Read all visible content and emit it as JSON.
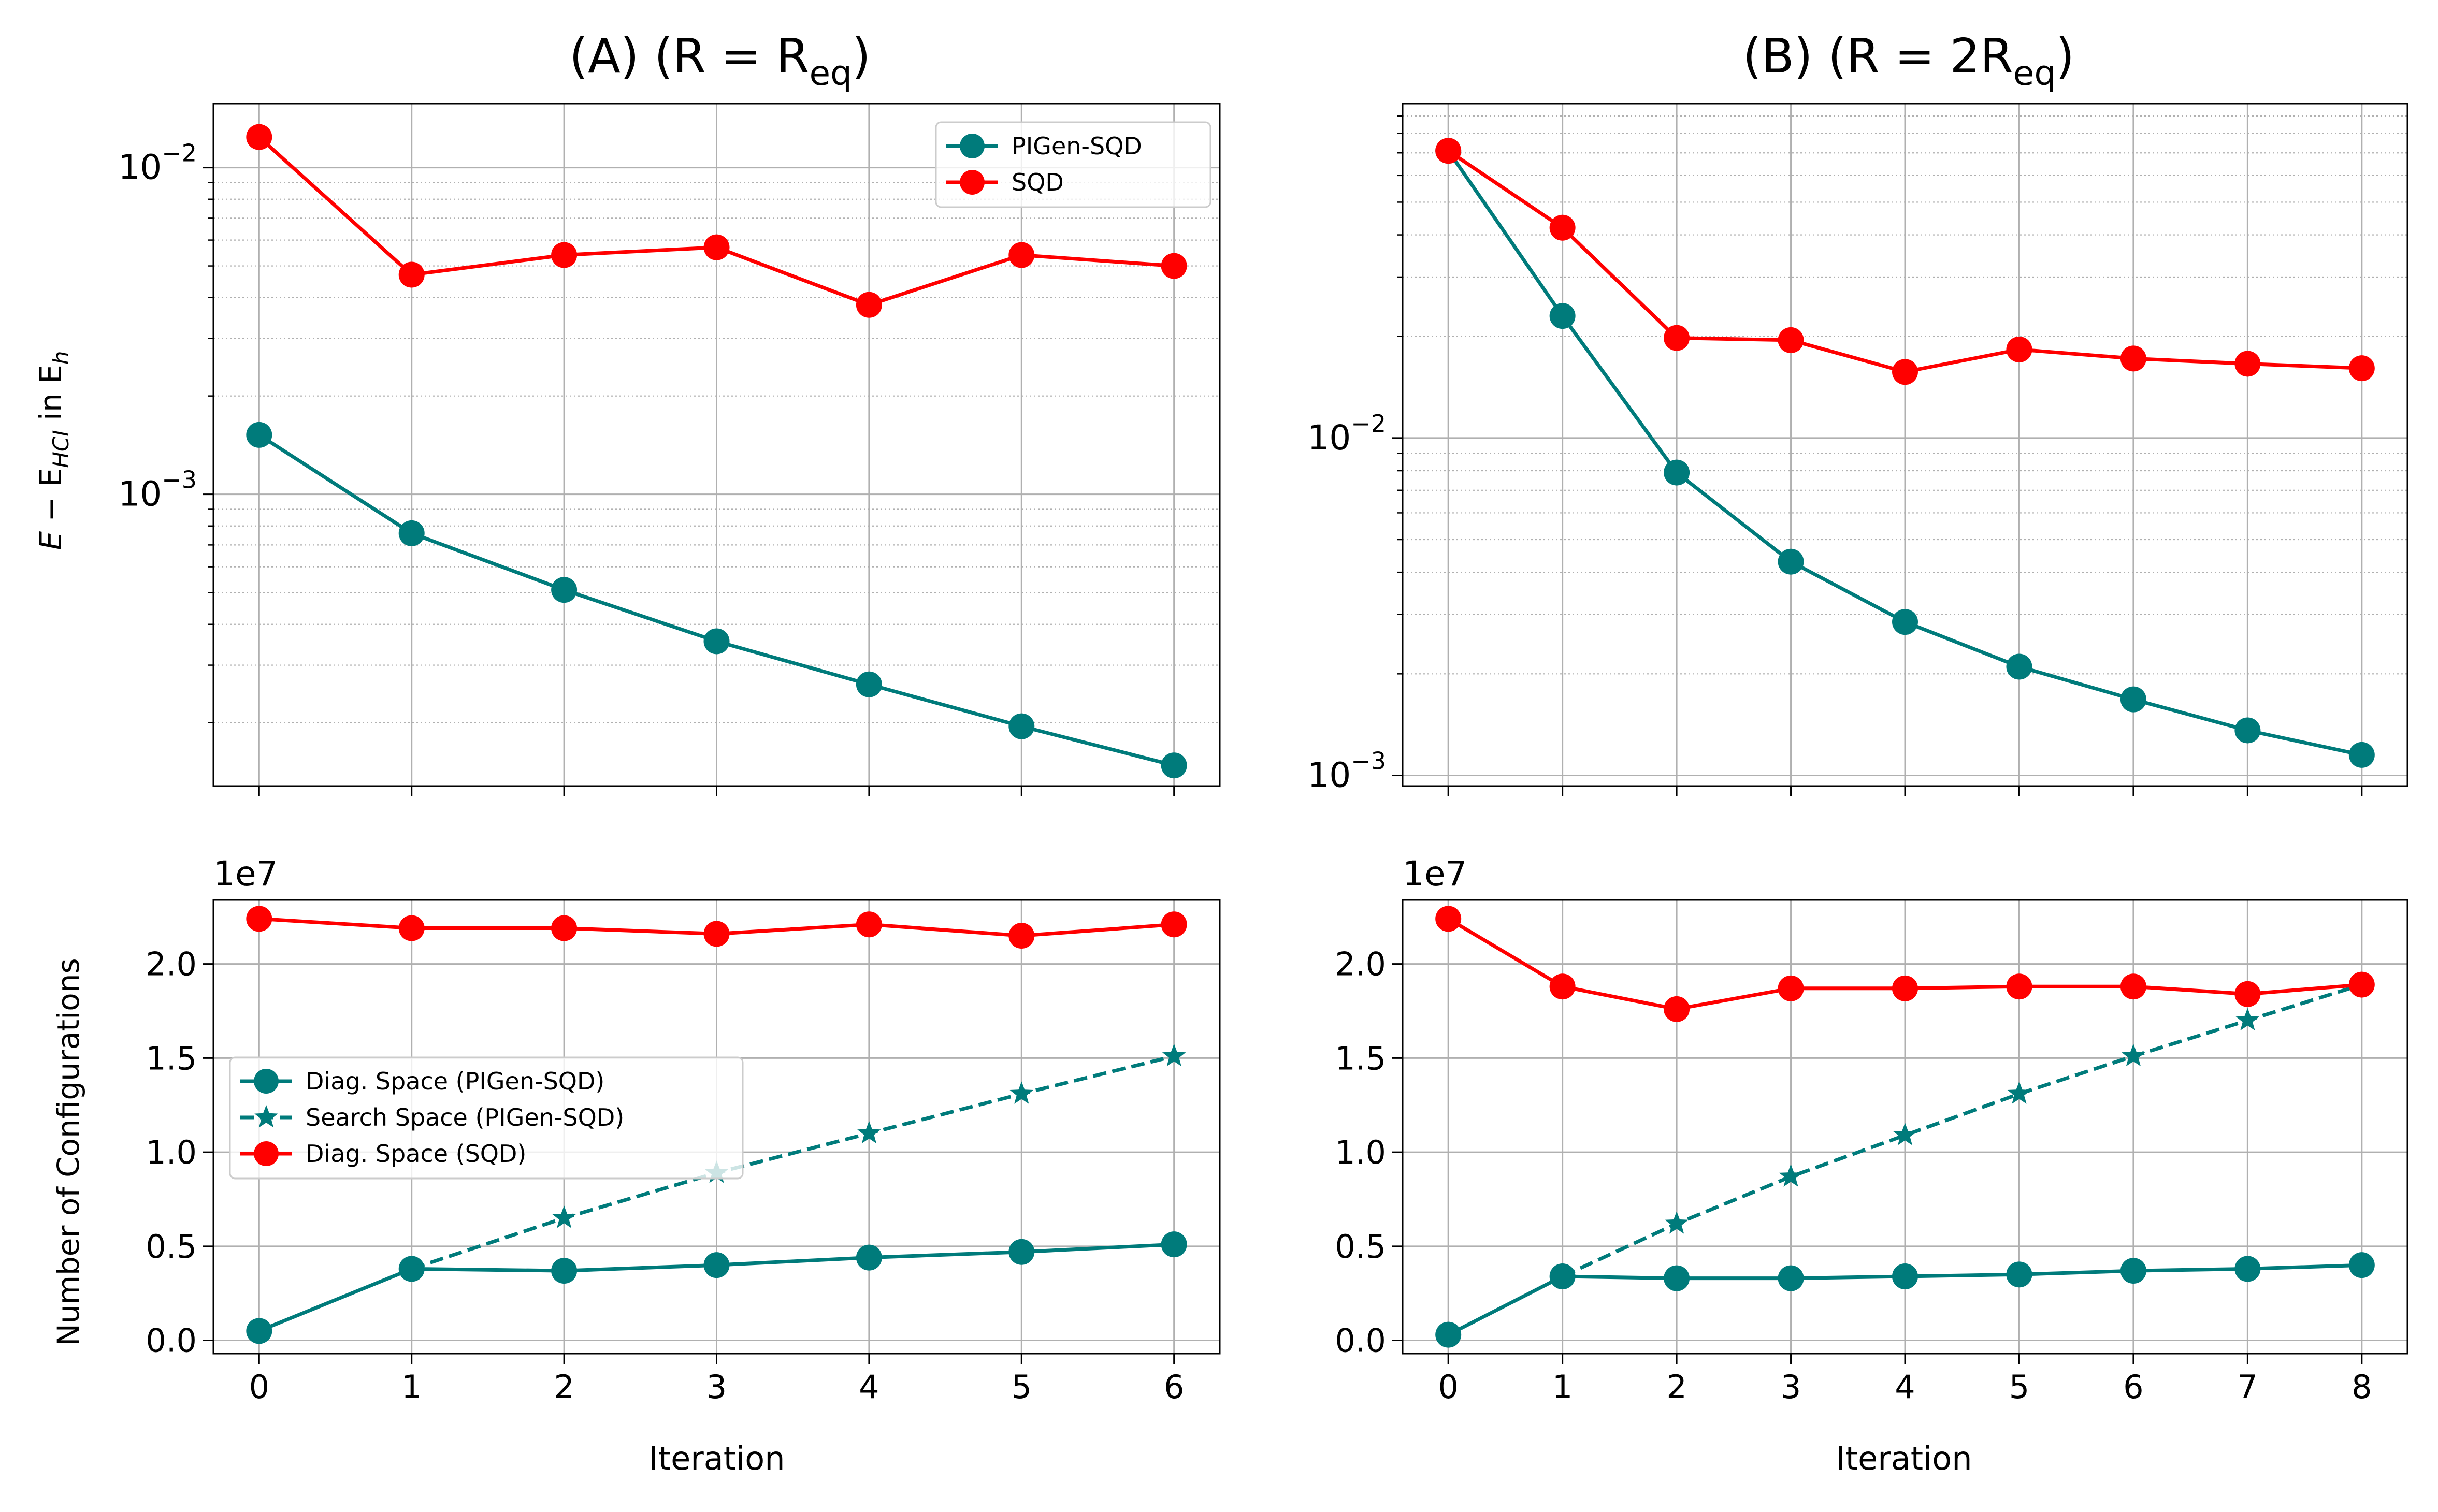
{
  "colors": {
    "pigen": "#007b7b",
    "sqd": "#ff0000",
    "grid_major": "#b0b0b0",
    "grid_minor": "#b0b0b0"
  },
  "panels": {
    "A": {
      "title_main": "(A) (R = R",
      "title_sub": "eq",
      "title_close": ")"
    },
    "B": {
      "title_main": "(B) (R = 2R",
      "title_sub": "eq",
      "title_close": ")"
    }
  },
  "labels": {
    "top_ylabel_parts": {
      "E": "E",
      "minus": " − E",
      "hci": "HCI",
      "in": " in E",
      "h": "h"
    },
    "bottom_ylabel": "Number of Configurations",
    "xlabel": "Iteration",
    "offset_text": "1e7"
  },
  "chart_data": [
    {
      "id": "A-top",
      "type": "line",
      "title": "(A) (R = Req)",
      "xlabel": "",
      "ylabel": "E − E_HCI in E_h",
      "yscale": "log",
      "ylim": [
        0.000128,
        0.0157
      ],
      "xlim": [
        -0.3,
        6.3
      ],
      "x": [
        0,
        1,
        2,
        3,
        4,
        5,
        6
      ],
      "yticks": [
        0.001,
        0.01
      ],
      "ytick_labels": [
        [
          "10",
          "−3"
        ],
        [
          "10",
          "−2"
        ]
      ],
      "legend": {
        "loc": "upper right",
        "entries": [
          "PIGen-SQD",
          "SQD"
        ]
      },
      "series": [
        {
          "name": "PIGen-SQD",
          "color": "#007b7b",
          "marker": "o",
          "linestyle": "solid",
          "values": [
            0.00152,
            0.00076,
            0.00051,
            0.000355,
            0.000262,
            0.000195,
            0.000148
          ]
        },
        {
          "name": "SQD",
          "color": "#ff0000",
          "marker": "o",
          "linestyle": "solid",
          "values": [
            0.0124,
            0.0047,
            0.0054,
            0.0057,
            0.0038,
            0.0054,
            0.005
          ]
        }
      ]
    },
    {
      "id": "B-top",
      "type": "line",
      "title": "(B) (R = 2Req)",
      "xlabel": "",
      "ylabel": "",
      "yscale": "log",
      "ylim": [
        0.00093,
        0.098
      ],
      "xlim": [
        -0.4,
        8.4
      ],
      "x": [
        0,
        1,
        2,
        3,
        4,
        5,
        6,
        7,
        8
      ],
      "yticks": [
        0.001,
        0.01
      ],
      "ytick_labels": [
        [
          "10",
          "−3"
        ],
        [
          "10",
          "−2"
        ]
      ],
      "series": [
        {
          "name": "PIGen-SQD",
          "color": "#007b7b",
          "marker": "o",
          "linestyle": "solid",
          "values": [
            0.071,
            0.023,
            0.0079,
            0.0043,
            0.00285,
            0.0021,
            0.00168,
            0.00136,
            0.00115
          ]
        },
        {
          "name": "SQD",
          "color": "#ff0000",
          "marker": "o",
          "linestyle": "solid",
          "values": [
            0.071,
            0.042,
            0.0198,
            0.0195,
            0.0157,
            0.0183,
            0.0172,
            0.0166,
            0.0161
          ]
        }
      ]
    },
    {
      "id": "A-bottom",
      "type": "line",
      "title": "",
      "xlabel": "Iteration",
      "ylabel": "Number of Configurations",
      "offset": "1e7",
      "ylim": [
        -0.07,
        2.34
      ],
      "xlim": [
        -0.3,
        6.3
      ],
      "x": [
        0,
        1,
        2,
        3,
        4,
        5,
        6
      ],
      "xticks": [
        "0",
        "1",
        "2",
        "3",
        "4",
        "5",
        "6"
      ],
      "yticks": [
        0.0,
        0.5,
        1.0,
        1.5,
        2.0
      ],
      "ytick_labels": [
        "0.0",
        "0.5",
        "1.0",
        "1.5",
        "2.0"
      ],
      "legend": {
        "loc": "center left",
        "entries": [
          "Diag. Space (PIGen-SQD)",
          "Search Space (PIGen-SQD)",
          "Diag. Space (SQD)"
        ]
      },
      "series": [
        {
          "name": "Diag. Space (PIGen-SQD)",
          "color": "#007b7b",
          "marker": "o",
          "linestyle": "solid",
          "values": [
            0.05,
            0.38,
            0.37,
            0.4,
            0.44,
            0.47,
            0.51
          ]
        },
        {
          "name": "Search Space (PIGen-SQD)",
          "color": "#007b7b",
          "marker": "*",
          "linestyle": "dashed",
          "values": [
            null,
            0.38,
            0.65,
            0.89,
            1.1,
            1.31,
            1.51
          ]
        },
        {
          "name": "Diag. Space (SQD)",
          "color": "#ff0000",
          "marker": "o",
          "linestyle": "solid",
          "values": [
            2.24,
            2.19,
            2.19,
            2.16,
            2.21,
            2.15,
            2.21
          ]
        }
      ]
    },
    {
      "id": "B-bottom",
      "type": "line",
      "title": "",
      "xlabel": "Iteration",
      "ylabel": "",
      "offset": "1e7",
      "ylim": [
        -0.07,
        2.34
      ],
      "xlim": [
        -0.4,
        8.4
      ],
      "x": [
        0,
        1,
        2,
        3,
        4,
        5,
        6,
        7,
        8
      ],
      "xticks": [
        "0",
        "1",
        "2",
        "3",
        "4",
        "5",
        "6",
        "7",
        "8"
      ],
      "yticks": [
        0.0,
        0.5,
        1.0,
        1.5,
        2.0
      ],
      "ytick_labels": [
        "0.0",
        "0.5",
        "1.0",
        "1.5",
        "2.0"
      ],
      "series": [
        {
          "name": "Diag. Space (PIGen-SQD)",
          "color": "#007b7b",
          "marker": "o",
          "linestyle": "solid",
          "values": [
            0.03,
            0.34,
            0.33,
            0.33,
            0.34,
            0.35,
            0.37,
            0.38,
            0.4
          ]
        },
        {
          "name": "Search Space (PIGen-SQD)",
          "color": "#007b7b",
          "marker": "*",
          "linestyle": "dashed",
          "values": [
            null,
            0.34,
            0.62,
            0.87,
            1.09,
            1.31,
            1.51,
            1.7,
            1.89
          ]
        },
        {
          "name": "Diag. Space (SQD)",
          "color": "#ff0000",
          "marker": "o",
          "linestyle": "solid",
          "values": [
            2.24,
            1.88,
            1.76,
            1.87,
            1.87,
            1.88,
            1.88,
            1.84,
            1.89
          ]
        }
      ]
    }
  ]
}
